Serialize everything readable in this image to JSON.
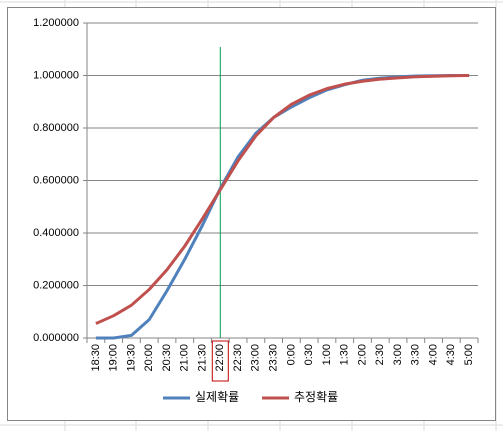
{
  "chart_data": {
    "type": "line",
    "categories": [
      "18:30",
      "19:00",
      "19:30",
      "20:00",
      "20:30",
      "21:00",
      "21:30",
      "22:00",
      "22:30",
      "23:00",
      "23:30",
      "0:00",
      "0:30",
      "1:00",
      "1:30",
      "2:00",
      "2:30",
      "3:00",
      "3:30",
      "4:00",
      "4:30",
      "5:00"
    ],
    "series": [
      {
        "name": "실제확률",
        "color": "#4f81bd",
        "values": [
          0.0,
          0.0,
          0.01,
          0.07,
          0.18,
          0.3,
          0.43,
          0.57,
          0.69,
          0.78,
          0.84,
          0.88,
          0.915,
          0.945,
          0.965,
          0.982,
          0.99,
          0.995,
          0.998,
          0.999,
          1.0,
          1.0
        ]
      },
      {
        "name": "추정확률",
        "color": "#c0504d",
        "values": [
          0.055,
          0.085,
          0.125,
          0.185,
          0.26,
          0.35,
          0.455,
          0.565,
          0.675,
          0.77,
          0.84,
          0.89,
          0.925,
          0.95,
          0.967,
          0.978,
          0.986,
          0.991,
          0.995,
          0.997,
          0.999,
          1.0
        ]
      }
    ],
    "ylim": [
      0,
      1.2
    ],
    "yticks": [
      {
        "value": 0,
        "label": "0.000000"
      },
      {
        "value": 0.2,
        "label": "0.200000"
      },
      {
        "value": 0.4,
        "label": "0.400000"
      },
      {
        "value": 0.6,
        "label": "0.600000"
      },
      {
        "value": 0.8,
        "label": "0.800000"
      },
      {
        "value": 1.0,
        "label": "1.000000"
      },
      {
        "value": 1.2,
        "label": "1.200000"
      }
    ],
    "grid": true,
    "legend": "bottom"
  }
}
